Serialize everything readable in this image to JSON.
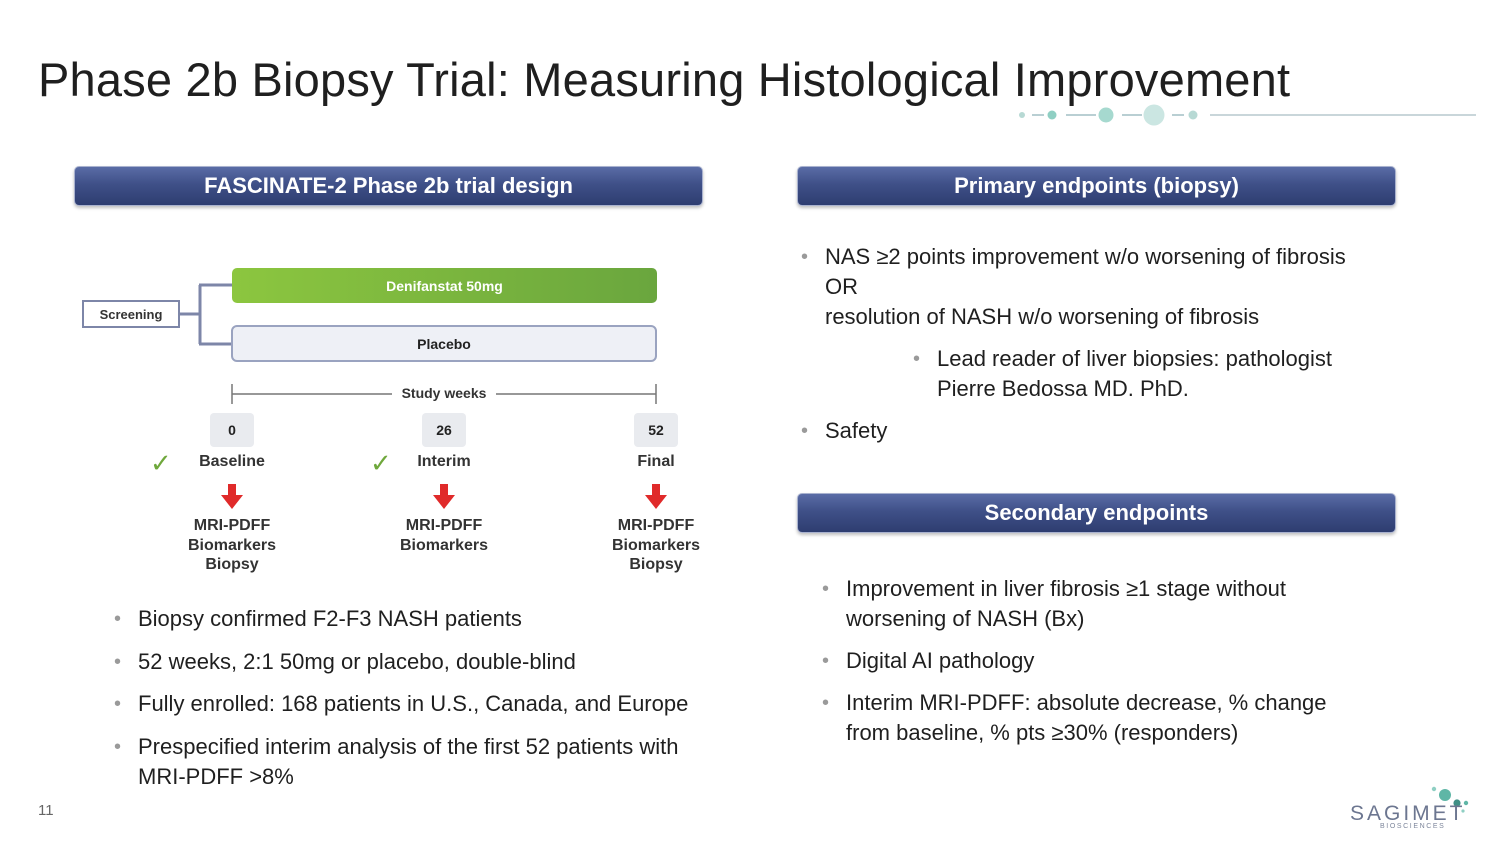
{
  "title": "Phase 2b Biopsy Trial: Measuring Histological Improvement",
  "colors": {
    "banner": "#3f5088",
    "accent_teal": "#8fcfc3",
    "drug_bar": "#7ab541",
    "check": "#6fa83c",
    "arrow": "#e02a2a"
  },
  "left": {
    "banner": "FASCINATE-2 Phase 2b trial design",
    "diagram": {
      "screening": "Screening",
      "drug_arm": "Denifanstat 50mg",
      "placebo_arm": "Placebo",
      "study_weeks": "Study weeks",
      "weeks": [
        "0",
        "26",
        "52"
      ],
      "timepoints": [
        "Baseline",
        "Interim",
        "Final"
      ],
      "measures": [
        "MRI-PDFF\nBiomarkers\nBiopsy",
        "MRI-PDFF\nBiomarkers",
        "MRI-PDFF\nBiomarkers\nBiopsy"
      ],
      "check_icon": "check-mark-icon",
      "arrow_icon": "red-down-arrow-icon"
    },
    "bullets": [
      "Biopsy confirmed F2-F3 NASH patients",
      "52 weeks, 2:1 50mg or placebo, double-blind",
      "Fully enrolled: 168 patients in U.S., Canada, and Europe",
      "Prespecified interim analysis of the first 52 patients with\nMRI-PDFF >8%"
    ]
  },
  "right": {
    "primary_banner": "Primary endpoints (biopsy)",
    "primary_bullets": [
      "NAS ≥2 points improvement w/o worsening of fibrosis\nOR\nresolution of NASH w/o worsening of fibrosis"
    ],
    "primary_sub_bullet": "Lead reader of liver biopsies: pathologist\nPierre Bedossa MD. PhD.",
    "primary_bullet_last": "Safety",
    "secondary_banner": "Secondary endpoints",
    "secondary_bullets": [
      "Improvement in liver fibrosis ≥1 stage without\nworsening of NASH (Bx)",
      "Digital AI pathology",
      "Interim MRI-PDFF: absolute decrease, % change\nfrom baseline, % pts ≥30% (responders)"
    ]
  },
  "footer": {
    "page_number": "11",
    "logo_name": "SAGIMET",
    "logo_sub": "BIOSCIENCES"
  }
}
